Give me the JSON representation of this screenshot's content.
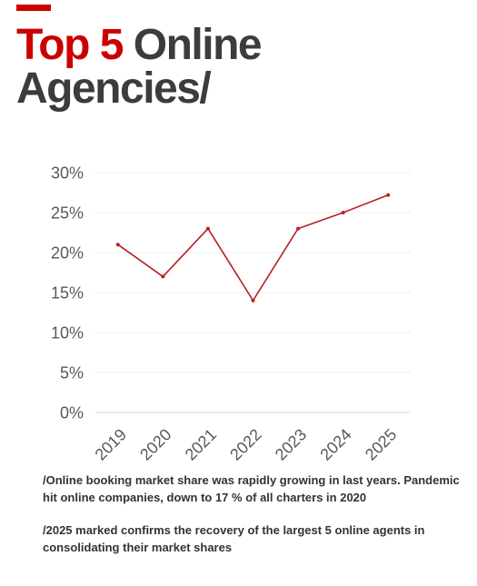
{
  "title": {
    "highlight": "Top 5",
    "rest": " Online",
    "line2": "Agencies/"
  },
  "colors": {
    "accent": "#cc0000",
    "title_dark": "#3c3c3c",
    "line": "#b81d24",
    "grid": "#eeeeee",
    "tick": "#595959"
  },
  "chart_data": {
    "type": "line",
    "title": "",
    "xlabel": "",
    "ylabel": "",
    "categories": [
      "2019",
      "2020",
      "2021",
      "2022",
      "2023",
      "2024",
      "2025"
    ],
    "series": [
      {
        "values": [
          21,
          17,
          23,
          14,
          23,
          25,
          27.2
        ]
      }
    ],
    "ylim": [
      0,
      30
    ],
    "yticks": [
      "0%",
      "5%",
      "10%",
      "15%",
      "20%",
      "25%",
      "30%"
    ],
    "grid": true,
    "legend": "none"
  },
  "notes": [
    "/Online booking market share was rapidly growing in last years. Pandemic hit online companies, down to 17 % of all charters in 2020",
    "/2025 marked confirms the recovery of the largest 5 online agents in consolidating their market shares"
  ]
}
